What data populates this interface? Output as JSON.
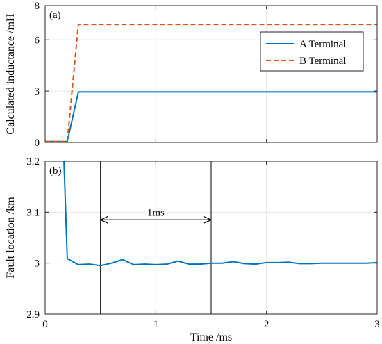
{
  "chart_data": [
    {
      "type": "line",
      "panel_tag": "(a)",
      "xlabel": "",
      "ylabel": "Calculated inductance /mH",
      "xlim": [
        0,
        3
      ],
      "ylim": [
        0,
        8
      ],
      "x_ticks": [
        0,
        1,
        2,
        3
      ],
      "x_tick_labels": [
        "",
        "",
        "",
        ""
      ],
      "y_ticks": [
        0,
        3,
        6,
        8
      ],
      "y_tick_labels": [
        "0",
        "3",
        "6",
        "8"
      ],
      "grid": true,
      "legend_position": "top-right",
      "series": [
        {
          "name": "A Terminal",
          "color": "#0072BD",
          "style": "solid",
          "x": [
            0,
            0.2,
            0.3,
            3.0
          ],
          "y": [
            0.05,
            0.05,
            2.95,
            2.95
          ]
        },
        {
          "name": "B Terminal",
          "color": "#D95319",
          "style": "dashed",
          "x": [
            0,
            0.2,
            0.3,
            3.0
          ],
          "y": [
            0.05,
            0.05,
            6.9,
            6.9
          ]
        }
      ]
    },
    {
      "type": "line",
      "panel_tag": "(b)",
      "xlabel": "Time /ms",
      "ylabel": "Fault location /km",
      "xlim": [
        0,
        3
      ],
      "ylim": [
        2.9,
        3.2
      ],
      "x_ticks": [
        0,
        1,
        2,
        3
      ],
      "x_tick_labels": [
        "0",
        "1",
        "2",
        "3"
      ],
      "y_ticks": [
        2.9,
        3.0,
        3.1,
        3.2
      ],
      "y_tick_labels": [
        "2.9",
        "3",
        "3.1",
        "3.2"
      ],
      "grid": true,
      "annotation": {
        "text": "1ms",
        "x_start": 0.5,
        "x_end": 1.5,
        "arrow_y": 3.085,
        "label_y": 3.1
      },
      "vertical_markers_x": [
        0.5,
        1.5
      ],
      "series": [
        {
          "name": "",
          "color": "#0072BD",
          "style": "solid",
          "x": [
            0.17,
            0.2,
            0.3,
            0.4,
            0.5,
            0.6,
            0.7,
            0.8,
            0.9,
            1.0,
            1.1,
            1.2,
            1.3,
            1.4,
            1.5,
            1.6,
            1.7,
            1.8,
            1.9,
            2.0,
            2.1,
            2.2,
            2.3,
            2.4,
            2.5,
            2.6,
            2.7,
            2.8,
            2.9,
            3.0
          ],
          "y": [
            3.2,
            3.009,
            2.997,
            2.998,
            2.995,
            3.0,
            3.007,
            2.997,
            2.998,
            2.997,
            2.998,
            3.004,
            2.998,
            2.998,
            3.0,
            3.0,
            3.003,
            2.999,
            2.998,
            3.001,
            3.001,
            3.002,
            2.999,
            2.999,
            3.0,
            3.0,
            3.0,
            3.0,
            3.0,
            3.001
          ]
        }
      ]
    }
  ]
}
